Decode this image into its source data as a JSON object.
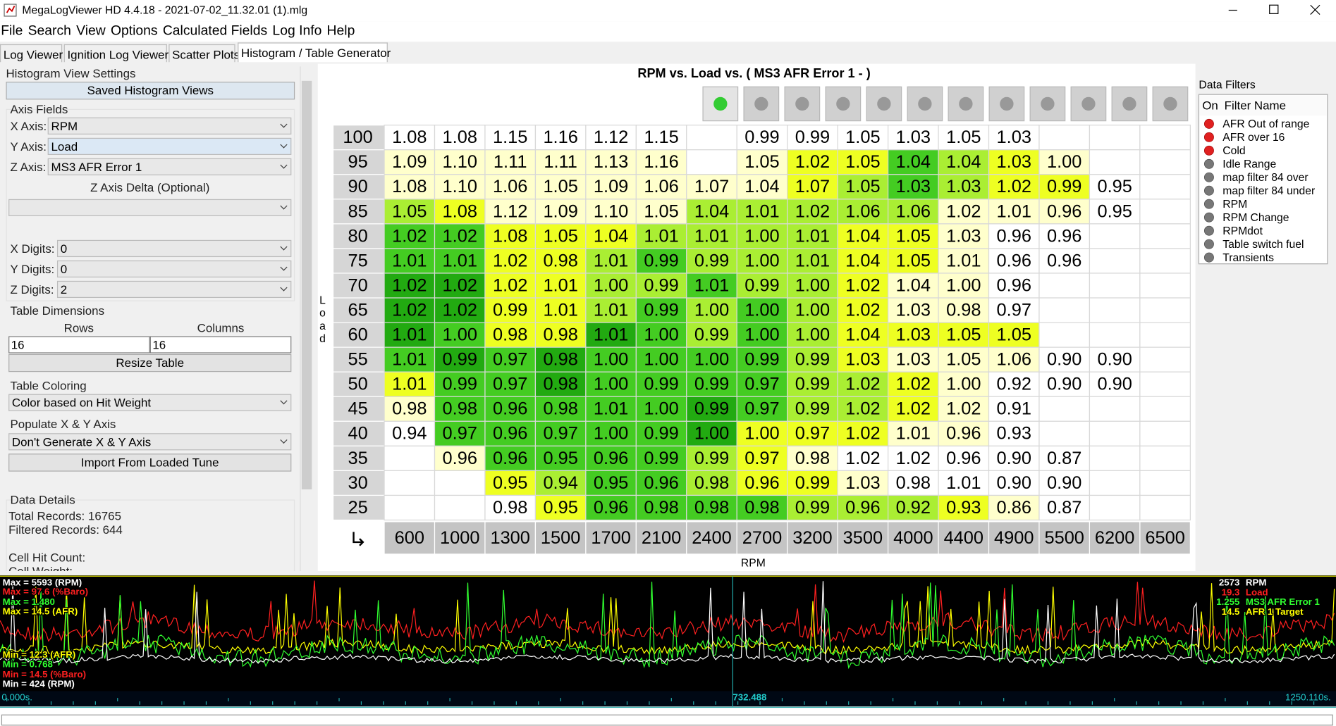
{
  "window": {
    "title": "MegaLogViewer HD 4.4.18 - 2021-07-02_11.32.01 (1).mlg"
  },
  "menu": [
    "File",
    "Search",
    "View",
    "Options",
    "Calculated Fields",
    "Log Info",
    "Help"
  ],
  "tabs": [
    "Log Viewer",
    "Ignition Log Viewer",
    "Scatter Plots",
    "Histogram / Table Generator"
  ],
  "settings": {
    "title": "Histogram View Settings",
    "saved_button": "Saved Histogram Views",
    "axis_fields": "Axis Fields",
    "x_axis_label": "X Axis:",
    "x_axis": "RPM",
    "y_axis_label": "Y Axis:",
    "y_axis": "Load",
    "z_axis_label": "Z Axis:",
    "z_axis": "MS3 AFR Error 1",
    "z_delta": "Z Axis Delta (Optional)",
    "x_digits_label": "X Digits:",
    "x_digits": "0",
    "y_digits_label": "Y Digits:",
    "y_digits": "0",
    "z_digits_label": "Z Digits:",
    "z_digits": "2",
    "table_dimensions": "Table Dimensions",
    "rows_label": "Rows",
    "columns_label": "Columns",
    "rows": "16",
    "columns": "16",
    "resize": "Resize Table",
    "table_coloring": "Table Coloring",
    "coloring": "Color based on Hit Weight",
    "populate": "Populate X & Y Axis",
    "populate_value": "Don't Generate X & Y Axis",
    "import": "Import From Loaded Tune",
    "data_details": "Data Details",
    "total_records": "Total Records: 16765",
    "filtered_records": "Filtered Records: 644",
    "cell_hit_count": "Cell Hit Count:",
    "cell_weight": "Cell Weight:"
  },
  "table": {
    "title": "RPM vs. Load vs. ( MS3 AFR Error 1  -  )",
    "y_label": "Load",
    "x_label": "RPM",
    "row_headers": [
      100,
      95,
      90,
      85,
      80,
      75,
      70,
      65,
      60,
      55,
      50,
      45,
      40,
      35,
      30,
      25
    ],
    "column_headers": [
      600,
      1000,
      1300,
      1500,
      1700,
      2100,
      2400,
      2700,
      3200,
      3500,
      4000,
      4400,
      4900,
      5500,
      6200,
      6500
    ],
    "rows": [
      [
        "1.08",
        "1.08",
        "1.15",
        "1.16",
        "1.12",
        "1.15",
        null,
        "0.99",
        "0.99",
        "1.05",
        "1.03",
        "1.05",
        "1.03",
        null,
        null,
        null
      ],
      [
        "1.09",
        "1.10",
        "1.11",
        "1.11",
        "1.13",
        "1.16",
        null,
        "1.05",
        "1.02",
        "1.05",
        "1.04",
        "1.04",
        "1.03",
        "1.00",
        null,
        null
      ],
      [
        "1.08",
        "1.10",
        "1.06",
        "1.05",
        "1.09",
        "1.06",
        "1.07",
        "1.04",
        "1.07",
        "1.05",
        "1.03",
        "1.03",
        "1.02",
        "0.99",
        "0.95",
        null
      ],
      [
        "1.05",
        "1.08",
        "1.12",
        "1.09",
        "1.10",
        "1.05",
        "1.04",
        "1.01",
        "1.02",
        "1.06",
        "1.06",
        "1.02",
        "1.01",
        "0.96",
        "0.95",
        null
      ],
      [
        "1.02",
        "1.02",
        "1.08",
        "1.05",
        "1.04",
        "1.01",
        "1.01",
        "1.00",
        "1.01",
        "1.04",
        "1.05",
        "1.03",
        "0.96",
        "0.96",
        null,
        null
      ],
      [
        "1.01",
        "1.01",
        "1.02",
        "0.98",
        "1.01",
        "0.99",
        "0.99",
        "1.00",
        "1.01",
        "1.04",
        "1.05",
        "1.01",
        "0.96",
        "0.96",
        null,
        null
      ],
      [
        "1.02",
        "1.02",
        "1.02",
        "1.01",
        "1.00",
        "0.99",
        "1.01",
        "0.99",
        "1.00",
        "1.02",
        "1.04",
        "1.00",
        "0.96",
        null,
        null,
        null
      ],
      [
        "1.02",
        "1.02",
        "0.99",
        "1.01",
        "1.01",
        "0.99",
        "1.00",
        "1.00",
        "1.00",
        "1.02",
        "1.03",
        "0.98",
        "0.97",
        null,
        null,
        null
      ],
      [
        "1.01",
        "1.00",
        "0.98",
        "0.98",
        "1.01",
        "1.00",
        "0.99",
        "1.00",
        "1.00",
        "1.04",
        "1.03",
        "1.05",
        "1.05",
        null,
        null,
        null
      ],
      [
        "1.01",
        "0.99",
        "0.97",
        "0.98",
        "1.00",
        "1.00",
        "1.00",
        "0.99",
        "0.99",
        "1.03",
        "1.03",
        "1.05",
        "1.06",
        "0.90",
        "0.90",
        null
      ],
      [
        "1.01",
        "0.99",
        "0.97",
        "0.98",
        "1.00",
        "0.99",
        "0.99",
        "0.97",
        "0.99",
        "1.02",
        "1.02",
        "1.00",
        "0.92",
        "0.90",
        "0.90",
        null
      ],
      [
        "0.98",
        "0.98",
        "0.96",
        "0.98",
        "1.01",
        "1.00",
        "0.99",
        "0.97",
        "0.99",
        "1.02",
        "1.02",
        "1.02",
        "0.91",
        null,
        null,
        null
      ],
      [
        "0.94",
        "0.97",
        "0.96",
        "0.97",
        "1.00",
        "0.99",
        "1.00",
        "1.00",
        "0.97",
        "1.02",
        "1.01",
        "0.96",
        "0.93",
        null,
        null,
        null
      ],
      [
        null,
        "0.96",
        "0.96",
        "0.95",
        "0.96",
        "0.99",
        "0.99",
        "0.97",
        "0.98",
        "1.02",
        "1.02",
        "0.96",
        "0.90",
        "0.87",
        null,
        null
      ],
      [
        null,
        null,
        "0.95",
        "0.94",
        "0.95",
        "0.96",
        "0.98",
        "0.96",
        "0.99",
        "1.03",
        "0.98",
        "1.01",
        "0.90",
        "0.90",
        null,
        null
      ],
      [
        null,
        null,
        "0.98",
        "0.95",
        "0.96",
        "0.98",
        "0.98",
        "0.98",
        "0.99",
        "0.96",
        "0.92",
        "0.93",
        "0.86",
        "0.87",
        null,
        null
      ]
    ],
    "cell_colors": [
      [
        "#fff",
        "#fff",
        "#fff",
        "#fff",
        "#fff",
        "#fff",
        "#fff",
        "#fff",
        "#fff",
        "#fff",
        "#fff",
        "#fff",
        "#fff",
        "#fff",
        "#fff",
        "#fff"
      ],
      [
        "#ffc",
        "#ffc",
        "#ffc",
        "#ffc",
        "#ffc",
        "#ffc",
        "#fff",
        "#ffc",
        "#ef2",
        "#ef2",
        "#4c2",
        "#ae3",
        "#ef2",
        "#ffc",
        "#fff",
        "#fff"
      ],
      [
        "#ffc",
        "#ffc",
        "#ffc",
        "#ffc",
        "#ffc",
        "#ffc",
        "#ffc",
        "#ffc",
        "#ef2",
        "#ae3",
        "#4c2",
        "#ae3",
        "#ef2",
        "#ef2",
        "#fff",
        "#fff"
      ],
      [
        "#ae3",
        "#ef2",
        "#ffc",
        "#ffc",
        "#ffc",
        "#ffc",
        "#ae3",
        "#ae3",
        "#ae3",
        "#ae3",
        "#ae3",
        "#ffc",
        "#ffc",
        "#ffc",
        "#fff",
        "#fff"
      ],
      [
        "#4c2",
        "#4c2",
        "#ef2",
        "#ef2",
        "#ef2",
        "#ae3",
        "#ae3",
        "#ae3",
        "#ae3",
        "#ef2",
        "#ef2",
        "#ffc",
        "#fff",
        "#fff",
        "#fff",
        "#fff"
      ],
      [
        "#4c2",
        "#4c2",
        "#ef2",
        "#ef2",
        "#ae3",
        "#4c2",
        "#ae3",
        "#ae3",
        "#ae3",
        "#ef2",
        "#ef2",
        "#ffc",
        "#fff",
        "#fff",
        "#fff",
        "#fff"
      ],
      [
        "#2a1",
        "#2a1",
        "#ef2",
        "#ef2",
        "#ae3",
        "#ae3",
        "#4c2",
        "#ae3",
        "#ae3",
        "#ef2",
        "#ffc",
        "#ffc",
        "#fff",
        "#fff",
        "#fff",
        "#fff"
      ],
      [
        "#2a1",
        "#2a1",
        "#ef2",
        "#ef2",
        "#ae3",
        "#4c2",
        "#ae3",
        "#4c2",
        "#ae3",
        "#ef2",
        "#ffc",
        "#ffc",
        "#fff",
        "#fff",
        "#fff",
        "#fff"
      ],
      [
        "#2a1",
        "#4c2",
        "#ef2",
        "#ef2",
        "#2a1",
        "#4c2",
        "#ae3",
        "#4c2",
        "#ae3",
        "#ef2",
        "#ef2",
        "#ef2",
        "#ef2",
        "#fff",
        "#fff",
        "#fff"
      ],
      [
        "#4c2",
        "#2a1",
        "#4c2",
        "#2a1",
        "#4c2",
        "#4c2",
        "#4c2",
        "#4c2",
        "#ae3",
        "#ef2",
        "#ffc",
        "#ffc",
        "#ffc",
        "#fff",
        "#fff",
        "#fff"
      ],
      [
        "#ef2",
        "#4c2",
        "#4c2",
        "#2a1",
        "#4c2",
        "#4c2",
        "#4c2",
        "#4c2",
        "#ae3",
        "#ae3",
        "#ef2",
        "#ffc",
        "#fff",
        "#fff",
        "#fff",
        "#fff"
      ],
      [
        "#ffc",
        "#4c2",
        "#4c2",
        "#4c2",
        "#4c2",
        "#4c2",
        "#2a1",
        "#4c2",
        "#ae3",
        "#ae3",
        "#ef2",
        "#ffc",
        "#fff",
        "#fff",
        "#fff",
        "#fff"
      ],
      [
        "#fff",
        "#4c2",
        "#4c2",
        "#4c2",
        "#4c2",
        "#4c2",
        "#2a1",
        "#ef2",
        "#ef2",
        "#ef2",
        "#ffc",
        "#ffc",
        "#fff",
        "#fff",
        "#fff",
        "#fff"
      ],
      [
        "#fff",
        "#ffc",
        "#4c2",
        "#4c2",
        "#4c2",
        "#4c2",
        "#ae3",
        "#ef2",
        "#ffc",
        "#fff",
        "#fff",
        "#fff",
        "#fff",
        "#fff",
        "#fff",
        "#fff"
      ],
      [
        "#fff",
        "#fff",
        "#ef2",
        "#ae3",
        "#4c2",
        "#4c2",
        "#ae3",
        "#ef2",
        "#ef2",
        "#ffc",
        "#fff",
        "#fff",
        "#fff",
        "#fff",
        "#fff",
        "#fff"
      ],
      [
        "#fff",
        "#fff",
        "#fff",
        "#ef2",
        "#4c2",
        "#4c2",
        "#4c2",
        "#4c2",
        "#ae3",
        "#ae3",
        "#ae3",
        "#ef2",
        "#ffc",
        "#fff",
        "#fff",
        "#fff"
      ]
    ]
  },
  "filters": {
    "title": "Data Filters",
    "columns": [
      "On",
      "Filter Name"
    ],
    "items": [
      {
        "name": "AFR Out of range",
        "on": true
      },
      {
        "name": "AFR over 16",
        "on": true
      },
      {
        "name": "Cold",
        "on": true
      },
      {
        "name": "Idle Range",
        "on": false
      },
      {
        "name": "map filter 84 over",
        "on": false
      },
      {
        "name": "map filter 84 under",
        "on": false
      },
      {
        "name": "RPM",
        "on": false
      },
      {
        "name": "RPM Change",
        "on": false
      },
      {
        "name": "RPMdot",
        "on": false
      },
      {
        "name": "Table switch fuel",
        "on": false
      },
      {
        "name": "Transients",
        "on": false
      }
    ]
  },
  "log": {
    "left_labels": [
      {
        "text": "Max = 5593 (RPM)",
        "color": "#ffffff"
      },
      {
        "text": "Max = 97.6 (%Baro)",
        "color": "#ff2020"
      },
      {
        "text": "Max = 1.480",
        "color": "#30ff30"
      },
      {
        "text": "Max = 14.5 (AFR)",
        "color": "#ffff00"
      },
      {
        "text": "Min = 12.3 (AFR)",
        "color": "#ffff00"
      },
      {
        "text": "Min = 0.768",
        "color": "#30ff30"
      },
      {
        "text": "Min = 14.5 (%Baro)",
        "color": "#ff2020"
      },
      {
        "text": "Min = 424 (RPM)",
        "color": "#ffffff"
      }
    ],
    "right_items": [
      {
        "value": "2573",
        "name": "RPM",
        "color": "#ffffff"
      },
      {
        "value": "19.3",
        "name": "Load",
        "color": "#ff2020"
      },
      {
        "value": "1.255",
        "name": "MS3 AFR Error 1",
        "color": "#30ff30"
      },
      {
        "value": "14.5",
        "name": "AFR 1 Target",
        "color": "#ffff00"
      }
    ],
    "time_labels": [
      "0.000s.",
      "732.488",
      "1250.110s."
    ]
  }
}
